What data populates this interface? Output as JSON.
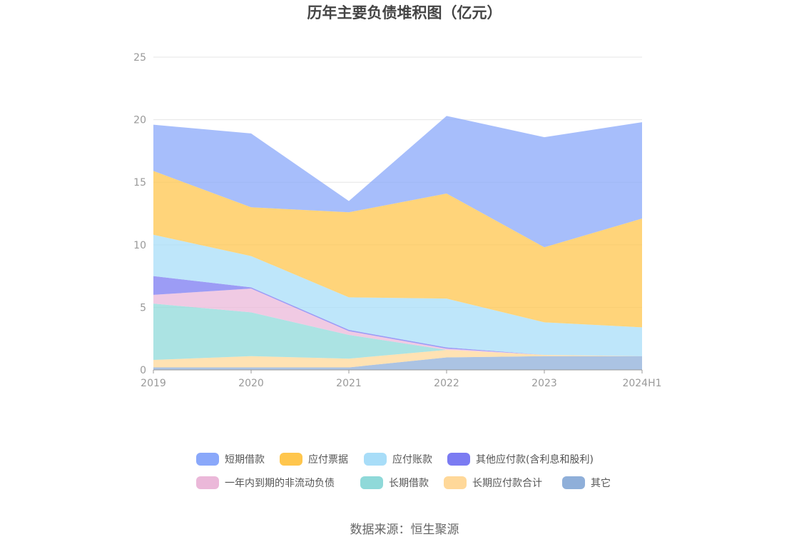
{
  "chart_data": {
    "type": "area",
    "stacked": true,
    "title": "历年主要负债堆积图（亿元）",
    "x": [
      "2019",
      "2020",
      "2021",
      "2022",
      "2023",
      "2024H1"
    ],
    "ylim": [
      0,
      25
    ],
    "yticks": [
      0,
      5,
      10,
      15,
      20,
      25
    ],
    "grid": true,
    "legend_position": "bottom",
    "series": [
      {
        "name": "其它",
        "color": "#8fafd9",
        "values": [
          0.2,
          0.2,
          0.2,
          1.0,
          1.1,
          1.1
        ]
      },
      {
        "name": "长期应付款合计",
        "color": "#ffd899",
        "values": [
          0.6,
          0.9,
          0.7,
          0.6,
          0.1,
          0.0
        ]
      },
      {
        "name": "长期借款",
        "color": "#8fd9d9",
        "values": [
          4.5,
          3.5,
          1.9,
          0.0,
          0.0,
          0.0
        ]
      },
      {
        "name": "一年内到期的非流动负债",
        "color": "#ebb8d9",
        "values": [
          0.7,
          1.9,
          0.3,
          0.1,
          0.0,
          0.0
        ]
      },
      {
        "name": "其他应付款(含利息和股利)",
        "color": "#7b7bf2",
        "values": [
          1.5,
          0.1,
          0.1,
          0.1,
          0.0,
          0.0
        ]
      },
      {
        "name": "应付账款",
        "color": "#a8ddf8",
        "values": [
          3.3,
          2.5,
          2.6,
          3.9,
          2.6,
          2.3
        ]
      },
      {
        "name": "应付票据",
        "color": "#ffc64d",
        "values": [
          5.1,
          3.9,
          6.8,
          8.4,
          6.0,
          8.7
        ]
      },
      {
        "name": "短期借款",
        "color": "#8aa8fa",
        "values": [
          3.7,
          5.9,
          0.9,
          6.2,
          8.8,
          7.7
        ]
      }
    ],
    "legend_order": [
      "短期借款",
      "应付票据",
      "应付账款",
      "其他应付款(含利息和股利)",
      "一年内到期的非流动负债",
      "长期借款",
      "长期应付款合计",
      "其它"
    ],
    "source": "数据来源：恒生聚源"
  }
}
